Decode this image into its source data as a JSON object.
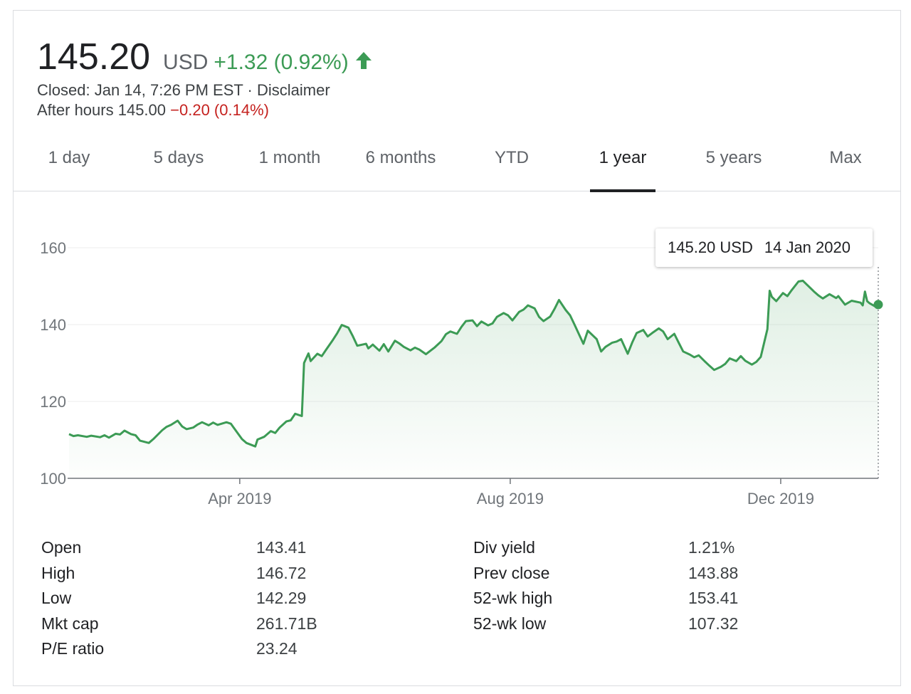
{
  "quote": {
    "price": "145.20",
    "currency": "USD",
    "change": "+1.32 (0.92%)",
    "closed_text": "Closed: Jan 14, 7:26 PM EST · Disclaimer",
    "after_hours_label": "After hours 145.00",
    "after_hours_change": "−0.20 (0.14%)",
    "up_color": "#3c9b55",
    "down_color": "#c5221f"
  },
  "tabs": [
    {
      "label": "1 day"
    },
    {
      "label": "5 days"
    },
    {
      "label": "1 month"
    },
    {
      "label": "6 months"
    },
    {
      "label": "YTD"
    },
    {
      "label": "1 year",
      "active": true
    },
    {
      "label": "5 years"
    },
    {
      "label": "Max"
    }
  ],
  "tooltip": {
    "price": "145.20 USD",
    "date": "14 Jan 2020"
  },
  "chart_data": {
    "type": "area",
    "line_color": "#3c9b55",
    "grid": true,
    "ylim": [
      100,
      160
    ],
    "y_ticks": [
      "100",
      "120",
      "140",
      "160"
    ],
    "x_ticks": [
      {
        "label": "Apr 2019",
        "date": "2019-04-01"
      },
      {
        "label": "Aug 2019",
        "date": "2019-08-01"
      },
      {
        "label": "Dec 2019",
        "date": "2019-12-01"
      }
    ],
    "x_range": [
      "2019-01-14",
      "2020-01-14"
    ],
    "series": [
      {
        "points": [
          [
            "2019-01-14",
            111.5
          ],
          [
            "2019-01-16",
            111.0
          ],
          [
            "2019-01-18",
            111.2
          ],
          [
            "2019-01-22",
            110.8
          ],
          [
            "2019-01-24",
            111.1
          ],
          [
            "2019-01-28",
            110.7
          ],
          [
            "2019-01-30",
            111.2
          ],
          [
            "2019-02-01",
            110.6
          ],
          [
            "2019-02-04",
            111.6
          ],
          [
            "2019-02-06",
            111.4
          ],
          [
            "2019-02-08",
            112.4
          ],
          [
            "2019-02-11",
            111.5
          ],
          [
            "2019-02-13",
            111.2
          ],
          [
            "2019-02-15",
            109.8
          ],
          [
            "2019-02-19",
            109.2
          ],
          [
            "2019-02-21",
            110.2
          ],
          [
            "2019-02-25",
            112.5
          ],
          [
            "2019-02-27",
            113.4
          ],
          [
            "2019-03-01",
            113.9
          ],
          [
            "2019-03-04",
            115.0
          ],
          [
            "2019-03-06",
            113.5
          ],
          [
            "2019-03-08",
            112.8
          ],
          [
            "2019-03-11",
            113.2
          ],
          [
            "2019-03-13",
            114.0
          ],
          [
            "2019-03-15",
            114.6
          ],
          [
            "2019-03-18",
            113.8
          ],
          [
            "2019-03-20",
            114.5
          ],
          [
            "2019-03-22",
            113.9
          ],
          [
            "2019-03-26",
            114.6
          ],
          [
            "2019-03-28",
            114.2
          ],
          [
            "2019-03-29",
            113.4
          ],
          [
            "2019-04-02",
            110.2
          ],
          [
            "2019-04-04",
            109.2
          ],
          [
            "2019-04-08",
            108.3
          ],
          [
            "2019-04-09",
            110.1
          ],
          [
            "2019-04-12",
            110.8
          ],
          [
            "2019-04-15",
            112.3
          ],
          [
            "2019-04-17",
            111.8
          ],
          [
            "2019-04-19",
            113.2
          ],
          [
            "2019-04-22",
            114.8
          ],
          [
            "2019-04-24",
            115.1
          ],
          [
            "2019-04-26",
            116.8
          ],
          [
            "2019-04-29",
            116.2
          ],
          [
            "2019-04-30",
            130.0
          ],
          [
            "2019-05-02",
            132.5
          ],
          [
            "2019-05-03",
            130.5
          ],
          [
            "2019-05-06",
            132.4
          ],
          [
            "2019-05-08",
            131.8
          ],
          [
            "2019-05-10",
            133.5
          ],
          [
            "2019-05-13",
            136.0
          ],
          [
            "2019-05-15",
            137.8
          ],
          [
            "2019-05-17",
            139.9
          ],
          [
            "2019-05-20",
            139.2
          ],
          [
            "2019-05-22",
            137.0
          ],
          [
            "2019-05-24",
            134.5
          ],
          [
            "2019-05-28",
            135.0
          ],
          [
            "2019-05-29",
            133.8
          ],
          [
            "2019-05-31",
            134.8
          ],
          [
            "2019-06-03",
            133.2
          ],
          [
            "2019-06-05",
            134.9
          ],
          [
            "2019-06-07",
            133.0
          ],
          [
            "2019-06-10",
            135.8
          ],
          [
            "2019-06-12",
            135.1
          ],
          [
            "2019-06-14",
            134.2
          ],
          [
            "2019-06-17",
            133.3
          ],
          [
            "2019-06-19",
            134.0
          ],
          [
            "2019-06-21",
            133.5
          ],
          [
            "2019-06-24",
            132.3
          ],
          [
            "2019-06-26",
            133.2
          ],
          [
            "2019-06-28",
            134.1
          ],
          [
            "2019-07-01",
            135.7
          ],
          [
            "2019-07-03",
            137.5
          ],
          [
            "2019-07-05",
            138.2
          ],
          [
            "2019-07-08",
            137.6
          ],
          [
            "2019-07-10",
            139.4
          ],
          [
            "2019-07-12",
            140.9
          ],
          [
            "2019-07-15",
            141.1
          ],
          [
            "2019-07-17",
            139.6
          ],
          [
            "2019-07-19",
            140.8
          ],
          [
            "2019-07-22",
            139.8
          ],
          [
            "2019-07-24",
            140.3
          ],
          [
            "2019-07-26",
            142.0
          ],
          [
            "2019-07-29",
            143.0
          ],
          [
            "2019-07-31",
            142.4
          ],
          [
            "2019-08-02",
            141.1
          ],
          [
            "2019-08-05",
            143.3
          ],
          [
            "2019-08-07",
            143.9
          ],
          [
            "2019-08-09",
            145.0
          ],
          [
            "2019-08-12",
            144.2
          ],
          [
            "2019-08-14",
            142.0
          ],
          [
            "2019-08-16",
            140.9
          ],
          [
            "2019-08-19",
            142.1
          ],
          [
            "2019-08-21",
            144.1
          ],
          [
            "2019-08-23",
            146.4
          ],
          [
            "2019-08-26",
            143.8
          ],
          [
            "2019-08-28",
            142.4
          ],
          [
            "2019-08-30",
            140.0
          ],
          [
            "2019-09-03",
            135.0
          ],
          [
            "2019-09-05",
            138.4
          ],
          [
            "2019-09-09",
            136.2
          ],
          [
            "2019-09-11",
            133.0
          ],
          [
            "2019-09-13",
            134.2
          ],
          [
            "2019-09-16",
            135.3
          ],
          [
            "2019-09-18",
            135.6
          ],
          [
            "2019-09-20",
            136.2
          ],
          [
            "2019-09-23",
            132.4
          ],
          [
            "2019-09-25",
            135.3
          ],
          [
            "2019-09-27",
            137.8
          ],
          [
            "2019-09-30",
            138.6
          ],
          [
            "2019-10-02",
            136.9
          ],
          [
            "2019-10-04",
            137.8
          ],
          [
            "2019-10-07",
            139.0
          ],
          [
            "2019-10-09",
            138.2
          ],
          [
            "2019-10-11",
            136.2
          ],
          [
            "2019-10-14",
            137.6
          ],
          [
            "2019-10-16",
            135.3
          ],
          [
            "2019-10-18",
            133.0
          ],
          [
            "2019-10-21",
            132.2
          ],
          [
            "2019-10-23",
            131.5
          ],
          [
            "2019-10-25",
            132.0
          ],
          [
            "2019-10-28",
            130.3
          ],
          [
            "2019-10-30",
            129.2
          ],
          [
            "2019-11-01",
            128.2
          ],
          [
            "2019-11-04",
            129.0
          ],
          [
            "2019-11-06",
            129.8
          ],
          [
            "2019-11-08",
            131.2
          ],
          [
            "2019-11-11",
            130.5
          ],
          [
            "2019-11-13",
            131.8
          ],
          [
            "2019-11-15",
            130.6
          ],
          [
            "2019-11-18",
            129.6
          ],
          [
            "2019-11-20",
            130.3
          ],
          [
            "2019-11-22",
            131.6
          ],
          [
            "2019-11-25",
            138.8
          ],
          [
            "2019-11-26",
            148.8
          ],
          [
            "2019-11-27",
            147.2
          ],
          [
            "2019-11-29",
            146.1
          ],
          [
            "2019-12-02",
            148.2
          ],
          [
            "2019-12-04",
            147.4
          ],
          [
            "2019-12-06",
            149.0
          ],
          [
            "2019-12-09",
            151.2
          ],
          [
            "2019-12-11",
            151.4
          ],
          [
            "2019-12-13",
            150.3
          ],
          [
            "2019-12-16",
            148.6
          ],
          [
            "2019-12-18",
            147.6
          ],
          [
            "2019-12-20",
            146.8
          ],
          [
            "2019-12-23",
            147.9
          ],
          [
            "2019-12-26",
            146.9
          ],
          [
            "2019-12-27",
            147.4
          ],
          [
            "2019-12-30",
            145.2
          ],
          [
            "2020-01-02",
            146.2
          ],
          [
            "2020-01-06",
            145.7
          ],
          [
            "2020-01-07",
            145.0
          ],
          [
            "2020-01-08",
            148.6
          ],
          [
            "2020-01-09",
            146.1
          ],
          [
            "2020-01-10",
            145.6
          ],
          [
            "2020-01-13",
            144.6
          ],
          [
            "2020-01-14",
            145.2
          ]
        ]
      }
    ]
  },
  "stats": {
    "left": [
      {
        "label": "Open",
        "value": "143.41"
      },
      {
        "label": "High",
        "value": "146.72"
      },
      {
        "label": "Low",
        "value": "142.29"
      },
      {
        "label": "Mkt cap",
        "value": "261.71B"
      },
      {
        "label": "P/E ratio",
        "value": "23.24"
      }
    ],
    "right": [
      {
        "label": "Div yield",
        "value": "1.21%"
      },
      {
        "label": "Prev close",
        "value": "143.88"
      },
      {
        "label": "52-wk high",
        "value": "153.41"
      },
      {
        "label": "52-wk low",
        "value": "107.32"
      }
    ]
  }
}
